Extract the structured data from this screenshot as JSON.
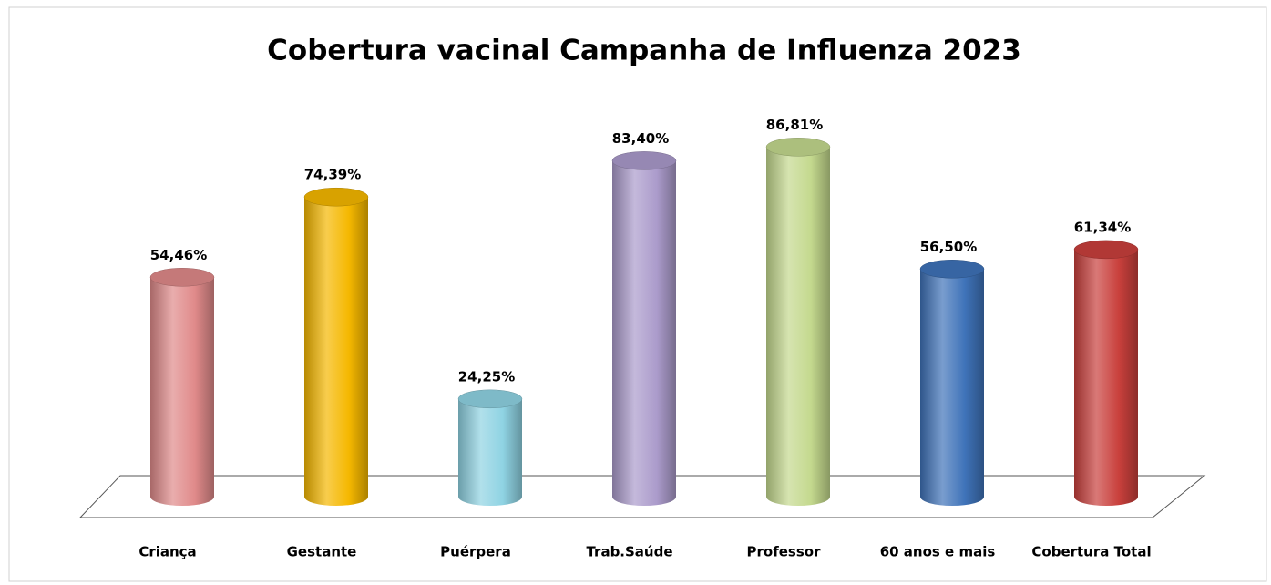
{
  "chart_data": {
    "type": "cylinder-bar",
    "title": "Cobertura vacinal Campanha de Influenza 2023",
    "categories": [
      "Criança",
      "Gestante",
      "Puérpera",
      "Trab.Saúde",
      "Professor",
      "60 anos e mais",
      "Cobertura Total"
    ],
    "values": [
      54.46,
      74.39,
      24.25,
      83.4,
      86.81,
      56.5,
      61.34
    ],
    "value_labels": [
      "54,46%",
      "74,39%",
      "24,25%",
      "83,40%",
      "86,81%",
      "56,50%",
      "61,34%"
    ],
    "colors": [
      "#e08a8a",
      "#f5b800",
      "#8fd3e3",
      "#ab9bcb",
      "#c4d98e",
      "#3f73b9",
      "#c9403c"
    ]
  }
}
